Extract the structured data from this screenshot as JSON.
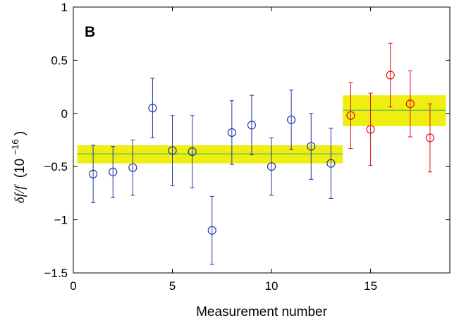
{
  "chart_data": {
    "type": "scatter",
    "title": "",
    "panel_label": "B",
    "xlabel": "Measurement number",
    "ylabel_symbol": "δf/f",
    "ylabel_unit": "(10",
    "ylabel_exponent": "−16",
    "ylabel_close": ")",
    "xlim": [
      0,
      19
    ],
    "ylim": [
      -1.5,
      1
    ],
    "xticks": [
      0,
      5,
      10,
      15
    ],
    "xtick_labels": [
      "0",
      "5",
      "10",
      "15"
    ],
    "yticks": [
      -1.5,
      -1,
      -0.5,
      0,
      0.5,
      1
    ],
    "ytick_labels": [
      "−1.5",
      "−1",
      "−0.5",
      "0",
      "0.5",
      "1"
    ],
    "grid": false,
    "series": [
      {
        "color": "#2233aa",
        "marker": "open-circle",
        "x": [
          1,
          2,
          3,
          4,
          5,
          6,
          7,
          8,
          9,
          10,
          11,
          12,
          13
        ],
        "y": [
          -0.57,
          -0.55,
          -0.51,
          0.05,
          -0.35,
          -0.36,
          -1.1,
          -0.18,
          -0.11,
          -0.5,
          -0.06,
          -0.31,
          -0.47
        ],
        "err": [
          0.27,
          0.24,
          0.26,
          0.28,
          0.33,
          0.34,
          0.32,
          0.3,
          0.28,
          0.27,
          0.28,
          0.31,
          0.33
        ]
      },
      {
        "color": "#dd1111",
        "marker": "open-circle",
        "x": [
          14,
          15,
          16,
          17,
          18
        ],
        "y": [
          -0.02,
          -0.15,
          0.36,
          0.09,
          -0.23
        ],
        "err": [
          0.31,
          0.34,
          0.3,
          0.31,
          0.32
        ]
      }
    ],
    "bands": [
      {
        "x": [
          0.2,
          13.6
        ],
        "mean": -0.38,
        "low": -0.47,
        "high": -0.3,
        "fill": "#eeee11",
        "line": "#33aa77"
      },
      {
        "x": [
          13.6,
          18.8
        ],
        "mean": 0.03,
        "low": -0.12,
        "high": 0.17,
        "fill": "#eeee11",
        "line": "#33aa77"
      }
    ]
  }
}
